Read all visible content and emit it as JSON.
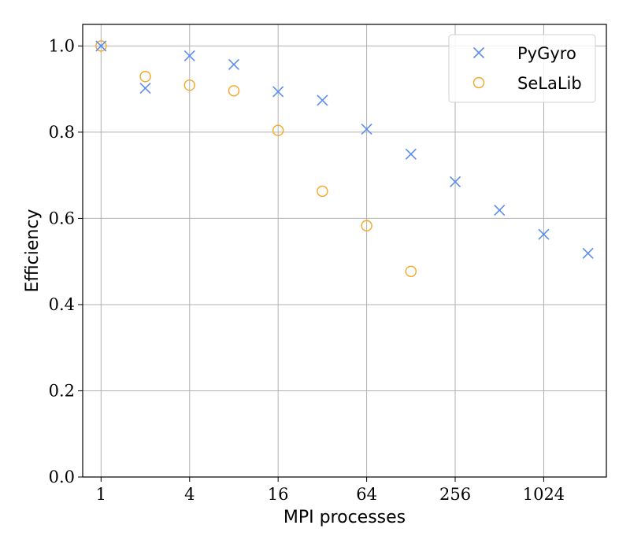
{
  "chart_data": {
    "type": "scatter",
    "xlabel": "MPI processes",
    "ylabel": "Efficiency",
    "x_scale": "log2",
    "xlim": [
      0.75,
      2731
    ],
    "ylim": [
      0.0,
      1.05
    ],
    "x_ticks": [
      1,
      4,
      16,
      64,
      256,
      1024
    ],
    "x_tick_labels": [
      "1",
      "4",
      "16",
      "64",
      "256",
      "1024"
    ],
    "y_ticks": [
      0.0,
      0.2,
      0.4,
      0.6,
      0.8,
      1.0
    ],
    "y_tick_labels": [
      "0.0",
      "0.2",
      "0.4",
      "0.6",
      "0.8",
      "1.0"
    ],
    "grid": true,
    "legend_position": "top-right",
    "series": [
      {
        "name": "PyGyro",
        "marker": "x",
        "color": "#5B8DEF",
        "x": [
          1,
          2,
          4,
          8,
          16,
          32,
          64,
          128,
          256,
          512,
          1024,
          2048
        ],
        "y": [
          1.0,
          0.902,
          0.977,
          0.957,
          0.894,
          0.874,
          0.807,
          0.749,
          0.685,
          0.619,
          0.563,
          0.519
        ]
      },
      {
        "name": "SeLaLib",
        "marker": "o",
        "color": "#F5A623",
        "x": [
          1,
          2,
          4,
          8,
          16,
          32,
          64,
          128
        ],
        "y": [
          1.0,
          0.929,
          0.909,
          0.896,
          0.804,
          0.663,
          0.583,
          0.477
        ]
      }
    ]
  }
}
